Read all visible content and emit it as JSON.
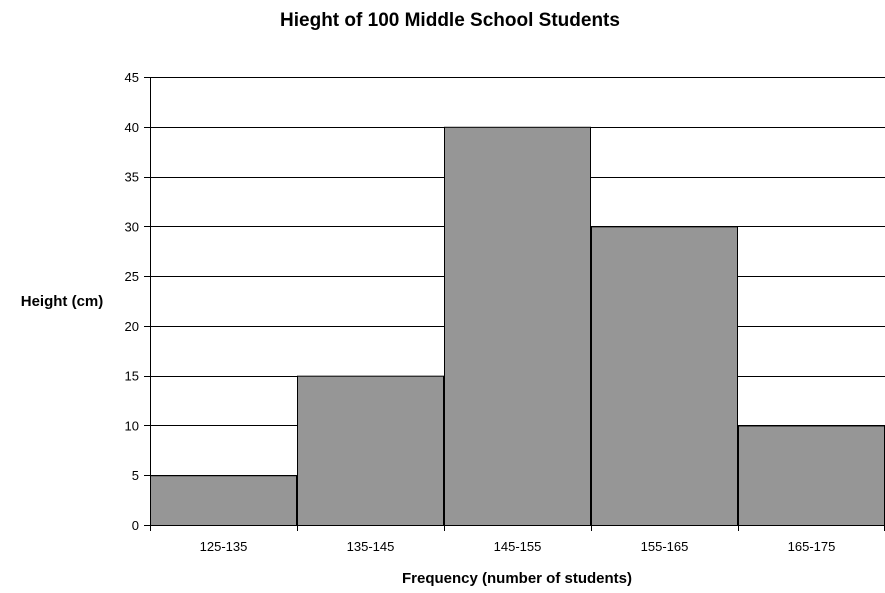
{
  "chart_data": {
    "type": "bar",
    "title": "Hieght of 100 Middle School Students",
    "xlabel": "Frequency (number of students)",
    "ylabel": "Height (cm)",
    "categories": [
      "125-135",
      "135-145",
      "145-155",
      "155-165",
      "165-175"
    ],
    "values": [
      5,
      15,
      40,
      30,
      10
    ],
    "ylim": [
      0,
      45
    ],
    "yticks": [
      0,
      5,
      10,
      15,
      20,
      25,
      30,
      35,
      40,
      45
    ],
    "grid": true,
    "legend": "none",
    "colors": {
      "bar_fill": "#969696",
      "bar_stroke": "#000000",
      "grid": "#000000",
      "axis": "#000000",
      "background": "#ffffff"
    }
  }
}
